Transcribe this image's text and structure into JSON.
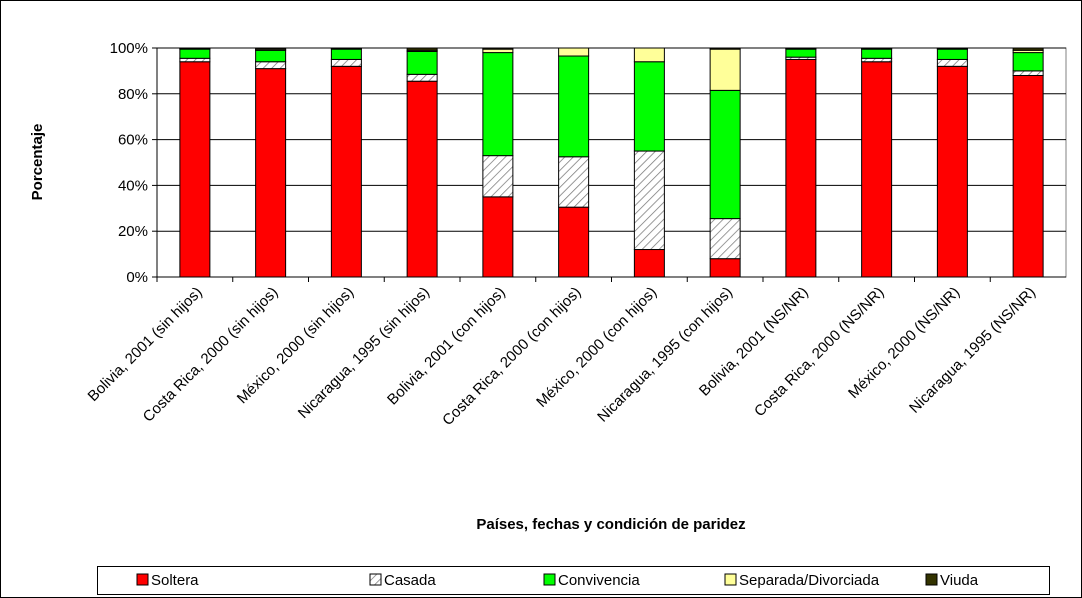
{
  "chart_data": {
    "type": "stacked_bar",
    "xlabel": "Países, fechas y condición de paridez",
    "ylabel": "Porcentaje",
    "categories": [
      "Bolivia, 2001 (sin hijos)",
      "Costa Rica, 2000 (sin hijos)",
      "México, 2000 (sin hijos)",
      "Nicaragua, 1995 (sin hijos)",
      "Bolivia, 2001 (con hijos)",
      "Costa Rica, 2000 (con hijos)",
      "México, 2000 (con hijos)",
      "Nicaragua, 1995 (con hijos)",
      "Bolivia, 2001 (NS/NR)",
      "Costa Rica, 2000 (NS/NR)",
      "México, 2000 (NS/NR)",
      "Nicaragua, 1995 (NS/NR)"
    ],
    "series": [
      {
        "name": "Soltera",
        "color": "#ff0000",
        "values": [
          94,
          91,
          92,
          85.5,
          35,
          30.5,
          12,
          8,
          95,
          94,
          92,
          88
        ]
      },
      {
        "name": "Casada",
        "color": "#ffffff",
        "hatch": true,
        "values": [
          1.5,
          3,
          3,
          3,
          18,
          22,
          43,
          17.5,
          1,
          1.5,
          3,
          2
        ]
      },
      {
        "name": "Convivencia",
        "color": "#00ff00",
        "values": [
          4,
          5,
          4.5,
          10,
          45,
          44,
          39,
          56,
          3.5,
          4,
          4.5,
          8
        ]
      },
      {
        "name": "Separada/Divorciada",
        "color": "#ffff99",
        "values": [
          0.3,
          0.5,
          0.3,
          0.5,
          1.5,
          3.5,
          6,
          18,
          0.3,
          0.3,
          0.3,
          1
        ]
      },
      {
        "name": "Viuda",
        "color": "#333300",
        "values": [
          0.2,
          0.5,
          0.2,
          1,
          0.5,
          0,
          0,
          0.5,
          0.2,
          0.2,
          0.2,
          1
        ]
      }
    ],
    "ylim": [
      0,
      100
    ],
    "yticks": [
      {
        "value": 0,
        "label": "0%"
      },
      {
        "value": 20,
        "label": "20%"
      },
      {
        "value": 40,
        "label": "40%"
      },
      {
        "value": 60,
        "label": "60%"
      },
      {
        "value": 80,
        "label": "80%"
      },
      {
        "value": 100,
        "label": "100%"
      }
    ],
    "grid": true,
    "legend": "bottom"
  }
}
